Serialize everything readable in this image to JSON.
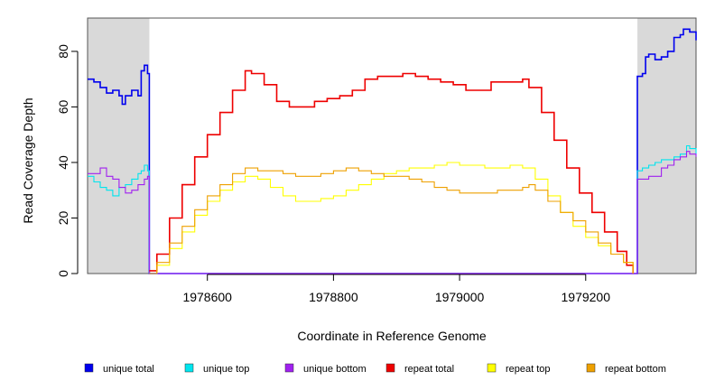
{
  "chart_data": {
    "type": "line",
    "title": "",
    "xlabel": "Coordinate in Reference Genome",
    "ylabel": "Read Coverage Depth",
    "xlim": [
      1978410,
      1979375
    ],
    "ylim": [
      0,
      92
    ],
    "x_ticks": [
      1978600,
      1978800,
      1979000,
      1979200
    ],
    "x_tick_labels": [
      "1978600",
      "1978800",
      "1979000",
      "1979200"
    ],
    "y_ticks": [
      0,
      20,
      40,
      60,
      80
    ],
    "y_tick_labels": [
      "0",
      "20",
      "40",
      "60",
      "80"
    ],
    "shaded_regions": [
      [
        1978410,
        1978508
      ],
      [
        1979282,
        1979375
      ]
    ],
    "shade_color": "#d9d9d9",
    "grid": false,
    "legend_position": "bottom",
    "series": [
      {
        "name": "unique total",
        "color": "#0000ee",
        "points": [
          [
            1978410,
            70
          ],
          [
            1978420,
            69
          ],
          [
            1978430,
            67
          ],
          [
            1978440,
            65
          ],
          [
            1978450,
            66
          ],
          [
            1978460,
            64
          ],
          [
            1978465,
            61
          ],
          [
            1978470,
            64
          ],
          [
            1978480,
            66
          ],
          [
            1978490,
            64
          ],
          [
            1978495,
            73
          ],
          [
            1978500,
            75
          ],
          [
            1978505,
            72
          ],
          [
            1978508,
            72
          ],
          [
            1978508,
            0
          ],
          [
            1979282,
            0
          ],
          [
            1979282,
            71
          ],
          [
            1979290,
            72
          ],
          [
            1979295,
            78
          ],
          [
            1979300,
            79
          ],
          [
            1979310,
            77
          ],
          [
            1979320,
            78
          ],
          [
            1979330,
            80
          ],
          [
            1979340,
            85
          ],
          [
            1979350,
            86
          ],
          [
            1979355,
            88
          ],
          [
            1979365,
            87
          ],
          [
            1979375,
            84
          ]
        ]
      },
      {
        "name": "unique top",
        "color": "#00e5ee",
        "points": [
          [
            1978410,
            35
          ],
          [
            1978420,
            33
          ],
          [
            1978430,
            31
          ],
          [
            1978440,
            30
          ],
          [
            1978450,
            28
          ],
          [
            1978460,
            31
          ],
          [
            1978470,
            32
          ],
          [
            1978480,
            34
          ],
          [
            1978490,
            36
          ],
          [
            1978495,
            37
          ],
          [
            1978500,
            39
          ],
          [
            1978505,
            37
          ],
          [
            1978508,
            37
          ],
          [
            1978508,
            0
          ],
          [
            1979282,
            0
          ],
          [
            1979282,
            37
          ],
          [
            1979290,
            38
          ],
          [
            1979300,
            39
          ],
          [
            1979310,
            40
          ],
          [
            1979320,
            41
          ],
          [
            1979330,
            41
          ],
          [
            1979340,
            42
          ],
          [
            1979350,
            43
          ],
          [
            1979360,
            46
          ],
          [
            1979365,
            45
          ],
          [
            1979375,
            43
          ]
        ]
      },
      {
        "name": "unique bottom",
        "color": "#a020f0",
        "points": [
          [
            1978410,
            36
          ],
          [
            1978420,
            36
          ],
          [
            1978430,
            38
          ],
          [
            1978440,
            35
          ],
          [
            1978450,
            34
          ],
          [
            1978460,
            31
          ],
          [
            1978470,
            29
          ],
          [
            1978480,
            30
          ],
          [
            1978490,
            32
          ],
          [
            1978500,
            34
          ],
          [
            1978505,
            35
          ],
          [
            1978508,
            35
          ],
          [
            1978508,
            0
          ],
          [
            1979282,
            0
          ],
          [
            1979282,
            34
          ],
          [
            1979290,
            34
          ],
          [
            1979300,
            35
          ],
          [
            1979310,
            35
          ],
          [
            1979320,
            38
          ],
          [
            1979330,
            39
          ],
          [
            1979340,
            41
          ],
          [
            1979350,
            42
          ],
          [
            1979360,
            44
          ],
          [
            1979365,
            43
          ],
          [
            1979375,
            42
          ]
        ]
      },
      {
        "name": "repeat total",
        "color": "#ee0000",
        "points": [
          [
            1978508,
            1
          ],
          [
            1978520,
            7
          ],
          [
            1978540,
            20
          ],
          [
            1978560,
            32
          ],
          [
            1978580,
            42
          ],
          [
            1978600,
            50
          ],
          [
            1978620,
            58
          ],
          [
            1978640,
            66
          ],
          [
            1978660,
            73
          ],
          [
            1978670,
            72
          ],
          [
            1978690,
            68
          ],
          [
            1978710,
            62
          ],
          [
            1978730,
            60
          ],
          [
            1978750,
            60
          ],
          [
            1978770,
            62
          ],
          [
            1978790,
            63
          ],
          [
            1978810,
            64
          ],
          [
            1978830,
            66
          ],
          [
            1978850,
            70
          ],
          [
            1978870,
            71
          ],
          [
            1978890,
            71
          ],
          [
            1978910,
            72
          ],
          [
            1978930,
            71
          ],
          [
            1978950,
            70
          ],
          [
            1978970,
            69
          ],
          [
            1978990,
            68
          ],
          [
            1979010,
            66
          ],
          [
            1979030,
            66
          ],
          [
            1979050,
            69
          ],
          [
            1979070,
            69
          ],
          [
            1979090,
            69
          ],
          [
            1979100,
            70
          ],
          [
            1979110,
            67
          ],
          [
            1979130,
            58
          ],
          [
            1979150,
            48
          ],
          [
            1979170,
            38
          ],
          [
            1979190,
            29
          ],
          [
            1979210,
            22
          ],
          [
            1979230,
            15
          ],
          [
            1979250,
            8
          ],
          [
            1979265,
            3
          ],
          [
            1979275,
            0
          ]
        ]
      },
      {
        "name": "repeat top",
        "color": "#ffff00",
        "points": [
          [
            1978508,
            0
          ],
          [
            1978520,
            3
          ],
          [
            1978540,
            9
          ],
          [
            1978560,
            15
          ],
          [
            1978580,
            21
          ],
          [
            1978600,
            26
          ],
          [
            1978620,
            30
          ],
          [
            1978640,
            33
          ],
          [
            1978660,
            35
          ],
          [
            1978680,
            34
          ],
          [
            1978700,
            31
          ],
          [
            1978720,
            28
          ],
          [
            1978740,
            26
          ],
          [
            1978760,
            26
          ],
          [
            1978780,
            27
          ],
          [
            1978800,
            28
          ],
          [
            1978820,
            30
          ],
          [
            1978840,
            32
          ],
          [
            1978860,
            34
          ],
          [
            1978880,
            36
          ],
          [
            1978900,
            37
          ],
          [
            1978920,
            38
          ],
          [
            1978940,
            38
          ],
          [
            1978960,
            39
          ],
          [
            1978980,
            40
          ],
          [
            1979000,
            39
          ],
          [
            1979020,
            39
          ],
          [
            1979040,
            38
          ],
          [
            1979060,
            38
          ],
          [
            1979080,
            39
          ],
          [
            1979100,
            38
          ],
          [
            1979120,
            34
          ],
          [
            1979140,
            28
          ],
          [
            1979160,
            22
          ],
          [
            1979180,
            17
          ],
          [
            1979200,
            13
          ],
          [
            1979220,
            10
          ],
          [
            1979240,
            7
          ],
          [
            1979260,
            4
          ],
          [
            1979275,
            0
          ]
        ]
      },
      {
        "name": "repeat bottom",
        "color": "#eea000",
        "points": [
          [
            1978508,
            0
          ],
          [
            1978520,
            4
          ],
          [
            1978540,
            11
          ],
          [
            1978560,
            17
          ],
          [
            1978580,
            23
          ],
          [
            1978600,
            28
          ],
          [
            1978620,
            32
          ],
          [
            1978640,
            36
          ],
          [
            1978660,
            38
          ],
          [
            1978680,
            37
          ],
          [
            1978700,
            37
          ],
          [
            1978720,
            36
          ],
          [
            1978740,
            35
          ],
          [
            1978760,
            35
          ],
          [
            1978780,
            36
          ],
          [
            1978800,
            37
          ],
          [
            1978820,
            38
          ],
          [
            1978840,
            37
          ],
          [
            1978860,
            36
          ],
          [
            1978880,
            35
          ],
          [
            1978900,
            35
          ],
          [
            1978920,
            34
          ],
          [
            1978940,
            33
          ],
          [
            1978960,
            31
          ],
          [
            1978980,
            30
          ],
          [
            1979000,
            29
          ],
          [
            1979020,
            29
          ],
          [
            1979040,
            29
          ],
          [
            1979060,
            30
          ],
          [
            1979080,
            30
          ],
          [
            1979100,
            31
          ],
          [
            1979110,
            32
          ],
          [
            1979120,
            30
          ],
          [
            1979140,
            26
          ],
          [
            1979160,
            22
          ],
          [
            1979180,
            19
          ],
          [
            1979200,
            15
          ],
          [
            1979220,
            11
          ],
          [
            1979240,
            7
          ],
          [
            1979260,
            4
          ],
          [
            1979275,
            0
          ]
        ]
      }
    ]
  }
}
